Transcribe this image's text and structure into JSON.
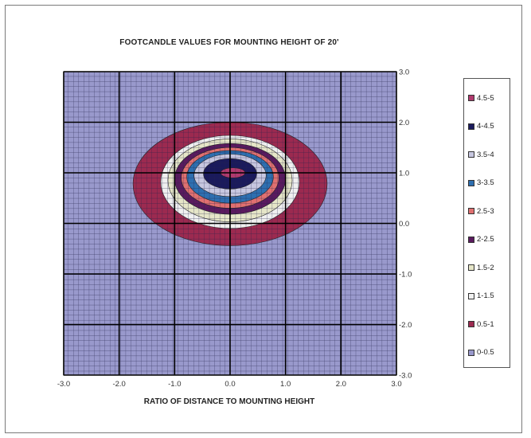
{
  "chart_data": {
    "type": "heatmap",
    "title": "FOOTCANDLE VALUES FOR MOUNTING HEIGHT OF 20'",
    "xlabel": "RATIO OF DISTANCE TO MOUNTING HEIGHT",
    "ylabel": "",
    "xlim": [
      -3.0,
      3.0
    ],
    "ylim": [
      -3.0,
      3.0
    ],
    "x_ticks": [
      "-3.0",
      "-2.0",
      "-1.0",
      "0.0",
      "1.0",
      "2.0",
      "3.0"
    ],
    "y_ticks": [
      "3.0",
      "2.0",
      "1.0",
      "0.0",
      "-1.0",
      "-2.0",
      "-3.0"
    ],
    "grid": true,
    "legend_position": "right",
    "background_color": "#9999cc",
    "series": [
      {
        "name": "4.5-5",
        "color": "#b03a6e",
        "cx": 0.05,
        "cy": 1.0,
        "rx": 0.22,
        "ry": 0.1
      },
      {
        "name": "4-4.5",
        "color": "#1a1a5c",
        "cx": 0.0,
        "cy": 0.98,
        "rx": 0.48,
        "ry": 0.3
      },
      {
        "name": "3.5-4",
        "color": "#c7c7e0",
        "cx": 0.0,
        "cy": 0.95,
        "rx": 0.65,
        "ry": 0.42
      },
      {
        "name": "3-3.5",
        "color": "#2e6fb0",
        "cx": 0.0,
        "cy": 0.92,
        "rx": 0.78,
        "ry": 0.52
      },
      {
        "name": "2.5-3",
        "color": "#e07070",
        "cx": 0.0,
        "cy": 0.9,
        "rx": 0.88,
        "ry": 0.6
      },
      {
        "name": "2-2.5",
        "color": "#5a1a5e",
        "cx": 0.0,
        "cy": 0.88,
        "rx": 1.0,
        "ry": 0.7
      },
      {
        "name": "1.5-2",
        "color": "#e6e6c8",
        "cx": 0.0,
        "cy": 0.85,
        "rx": 1.12,
        "ry": 0.82
      },
      {
        "name": "1-1.5",
        "color": "#f0f0f0",
        "cx": 0.0,
        "cy": 0.82,
        "rx": 1.25,
        "ry": 0.92
      },
      {
        "name": "0.5-1",
        "color": "#9c2a50",
        "cx": 0.0,
        "cy": 0.78,
        "rx": 1.75,
        "ry": 1.22
      },
      {
        "name": "0-0.5",
        "color": "#9999cc"
      }
    ]
  }
}
